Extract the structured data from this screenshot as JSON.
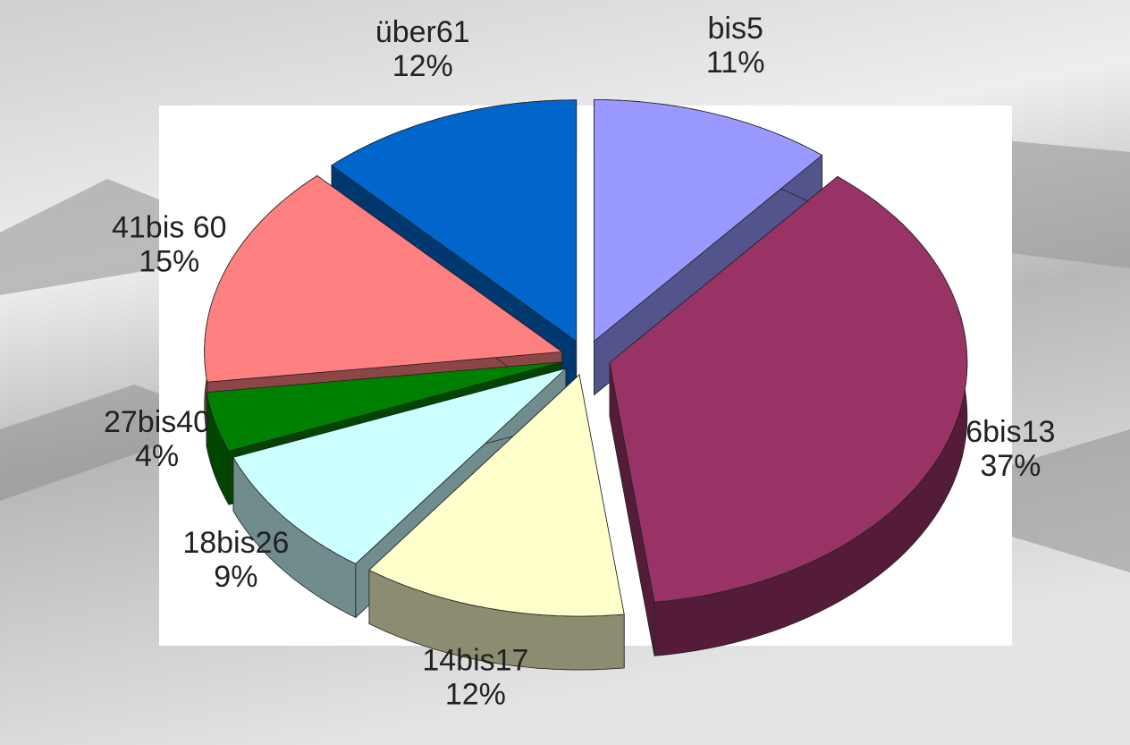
{
  "chart_data": {
    "type": "pie",
    "categories": [
      "bis5",
      "6bis13",
      "14bis17",
      "18bis26",
      "27bis40",
      "41bis 60",
      "über61"
    ],
    "values": [
      11,
      37,
      12,
      9,
      4,
      15,
      12
    ],
    "value_labels": [
      "11%",
      "37%",
      "12%",
      "9%",
      "4%",
      "15%",
      "12%"
    ],
    "colors": [
      "#9999ff",
      "#993366",
      "#ffffcc",
      "#ccffff",
      "#008000",
      "#ff8080",
      "#0066cc"
    ]
  }
}
